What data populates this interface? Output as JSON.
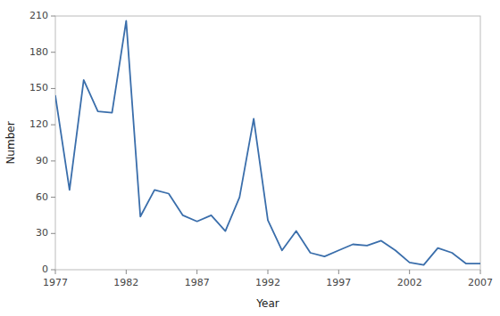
{
  "chart_data": {
    "type": "line",
    "x": [
      1977,
      1978,
      1979,
      1980,
      1981,
      1982,
      1983,
      1984,
      1985,
      1986,
      1987,
      1988,
      1989,
      1990,
      1991,
      1992,
      1993,
      1994,
      1995,
      1996,
      1997,
      1998,
      1999,
      2000,
      2001,
      2002,
      2003,
      2004,
      2005,
      2006,
      2007
    ],
    "values": [
      144,
      66,
      157,
      131,
      130,
      206,
      44,
      66,
      63,
      45,
      40,
      45,
      32,
      60,
      125,
      41,
      16,
      32,
      14,
      11,
      16,
      21,
      20,
      24,
      16,
      6,
      4,
      18,
      14,
      5,
      5
    ],
    "color": "#3a6eab",
    "xlabel": "Year",
    "ylabel": "Number",
    "xlim": [
      1977,
      2007
    ],
    "ylim": [
      0,
      210
    ],
    "xticks": [
      1977,
      1982,
      1987,
      1992,
      1997,
      2002,
      2007
    ],
    "yticks": [
      0,
      30,
      60,
      90,
      120,
      150,
      180,
      210
    ],
    "grid": false
  }
}
